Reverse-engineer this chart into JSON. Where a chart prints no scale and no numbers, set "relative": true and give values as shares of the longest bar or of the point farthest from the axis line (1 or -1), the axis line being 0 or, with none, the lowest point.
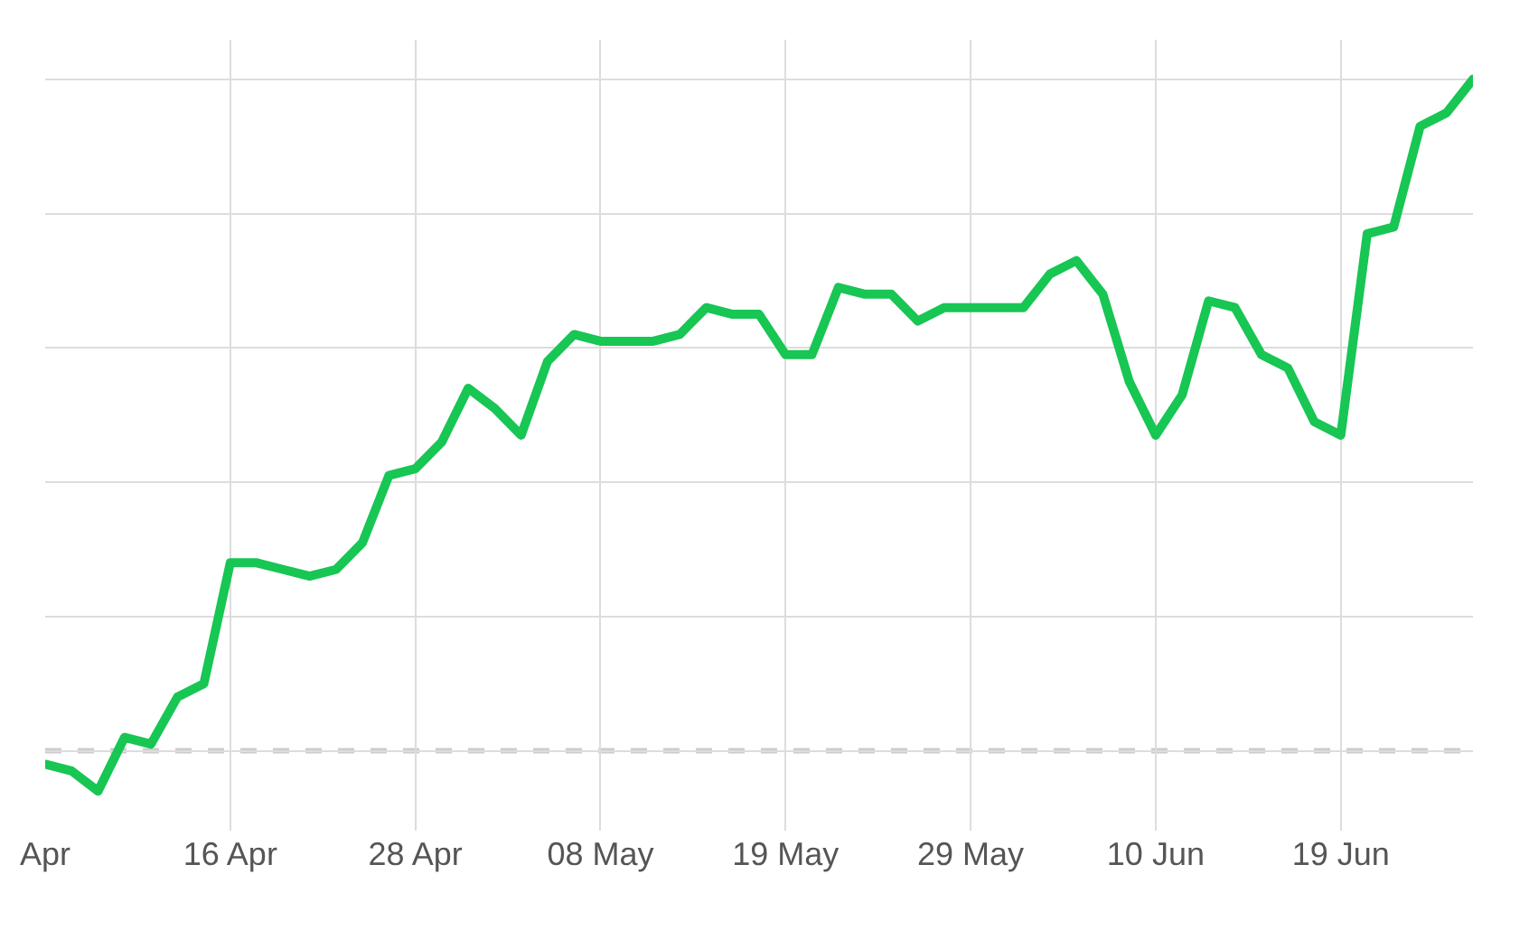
{
  "chart_data": {
    "type": "line",
    "relative": true,
    "categories": [
      "Apr",
      null,
      null,
      null,
      null,
      null,
      null,
      "16 Apr",
      null,
      null,
      null,
      null,
      null,
      null,
      "28 Apr",
      null,
      null,
      null,
      null,
      null,
      null,
      "08 May",
      null,
      null,
      null,
      null,
      null,
      null,
      "19 May",
      null,
      null,
      null,
      null,
      null,
      null,
      "29 May",
      null,
      null,
      null,
      null,
      null,
      null,
      "10 Jun",
      null,
      null,
      null,
      null,
      null,
      null,
      "19 Jun",
      null,
      null,
      null,
      null,
      null
    ],
    "series": [
      {
        "color": "#17c653",
        "values": [
          -0.02,
          -0.03,
          -0.06,
          0.02,
          0.01,
          0.08,
          0.1,
          0.28,
          0.28,
          0.27,
          0.26,
          0.27,
          0.31,
          0.41,
          0.42,
          0.46,
          0.54,
          0.51,
          0.47,
          0.58,
          0.62,
          0.61,
          0.61,
          0.61,
          0.62,
          0.66,
          0.65,
          0.65,
          0.59,
          0.59,
          0.69,
          0.68,
          0.68,
          0.64,
          0.66,
          0.66,
          0.66,
          0.66,
          0.71,
          0.73,
          0.68,
          0.55,
          0.47,
          0.53,
          0.67,
          0.66,
          0.59,
          0.57,
          0.49,
          0.47,
          0.77,
          0.78,
          0.93,
          0.95,
          1
        ]
      }
    ],
    "ref_lines": [
      {
        "axis": "y",
        "value": 0,
        "color": "#cccccc",
        "line_style": "dashed"
      }
    ],
    "grid": true,
    "legend": false,
    "marker": "none",
    "line_style": "solid"
  }
}
